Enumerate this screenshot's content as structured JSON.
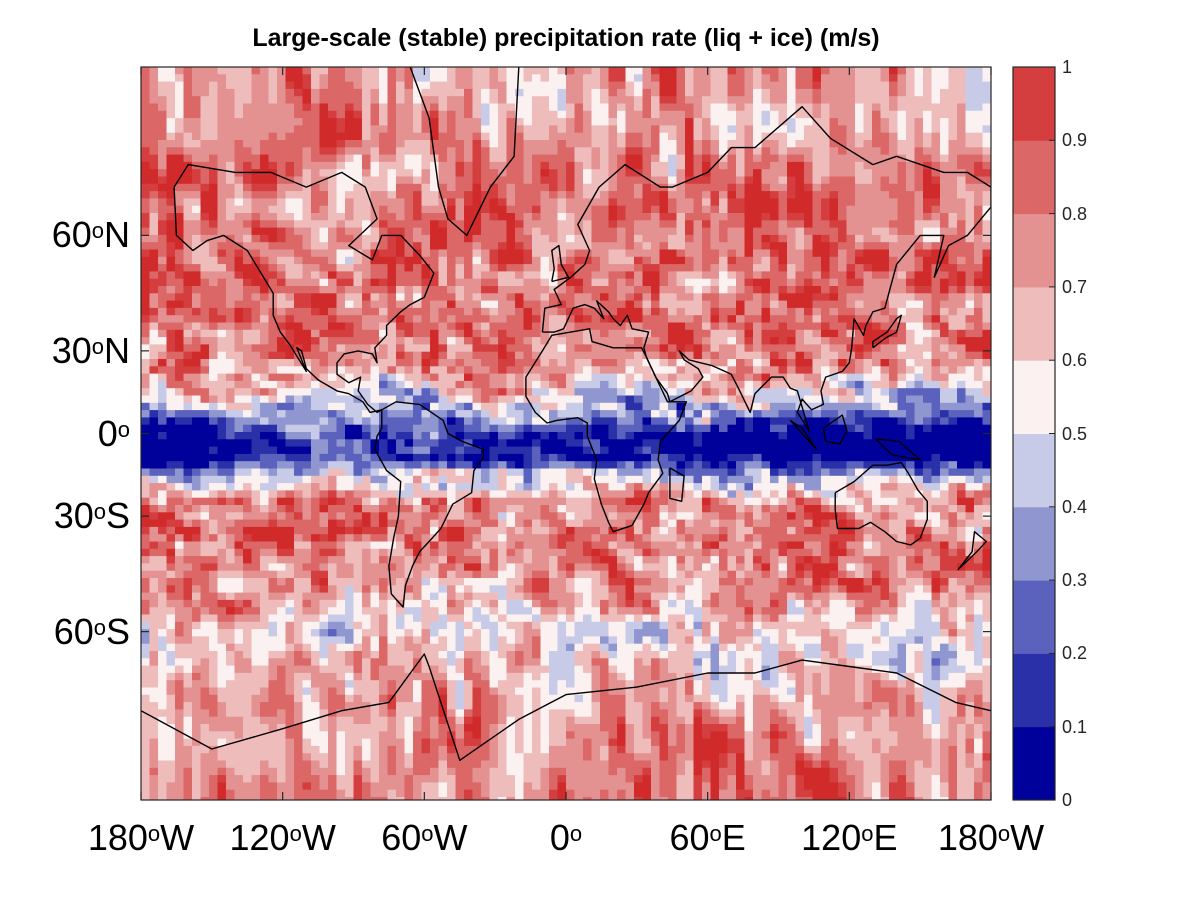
{
  "chart_data": {
    "type": "heatmap",
    "title": "Large-scale (stable) precipitation rate (liq + ice) (m/s)",
    "projection": "Mercator, global",
    "x_ticks": [
      {
        "deg": "180",
        "suffix": "W",
        "lon": -180
      },
      {
        "deg": "120",
        "suffix": "W",
        "lon": -120
      },
      {
        "deg": "60",
        "suffix": "W",
        "lon": -60
      },
      {
        "deg": "0",
        "suffix": "",
        "lon": 0
      },
      {
        "deg": "60",
        "suffix": "E",
        "lon": 60
      },
      {
        "deg": "120",
        "suffix": "E",
        "lon": 120
      },
      {
        "deg": "180",
        "suffix": "W",
        "lon": 180
      }
    ],
    "y_ticks": [
      {
        "deg": "60",
        "suffix": "N",
        "lat": 60
      },
      {
        "deg": "30",
        "suffix": "N",
        "lat": 30
      },
      {
        "deg": "0",
        "suffix": "",
        "lat": 0
      },
      {
        "deg": "30",
        "suffix": "S",
        "lat": -30
      },
      {
        "deg": "60",
        "suffix": "S",
        "lat": -60
      }
    ],
    "lon_range": [
      -180,
      180
    ],
    "lat_range": [
      -80,
      80
    ],
    "colorbar": {
      "ticks": [
        "0",
        "0.1",
        "0.2",
        "0.3",
        "0.4",
        "0.5",
        "0.6",
        "0.7",
        "0.8",
        "0.9",
        "1"
      ],
      "range": [
        0,
        1
      ],
      "levels": [
        "#00009a",
        "#2a31a8",
        "#5a62bd",
        "#9097d0",
        "#c8cbe8",
        "#fbf1f1",
        "#efbcbc",
        "#e49191",
        "#db6767",
        "#d43e3e",
        "#d12a2a"
      ]
    },
    "field_description": "Low values (blue) concentrated in a tropical band near the equator, high values (red) at mid/high latitudes"
  }
}
